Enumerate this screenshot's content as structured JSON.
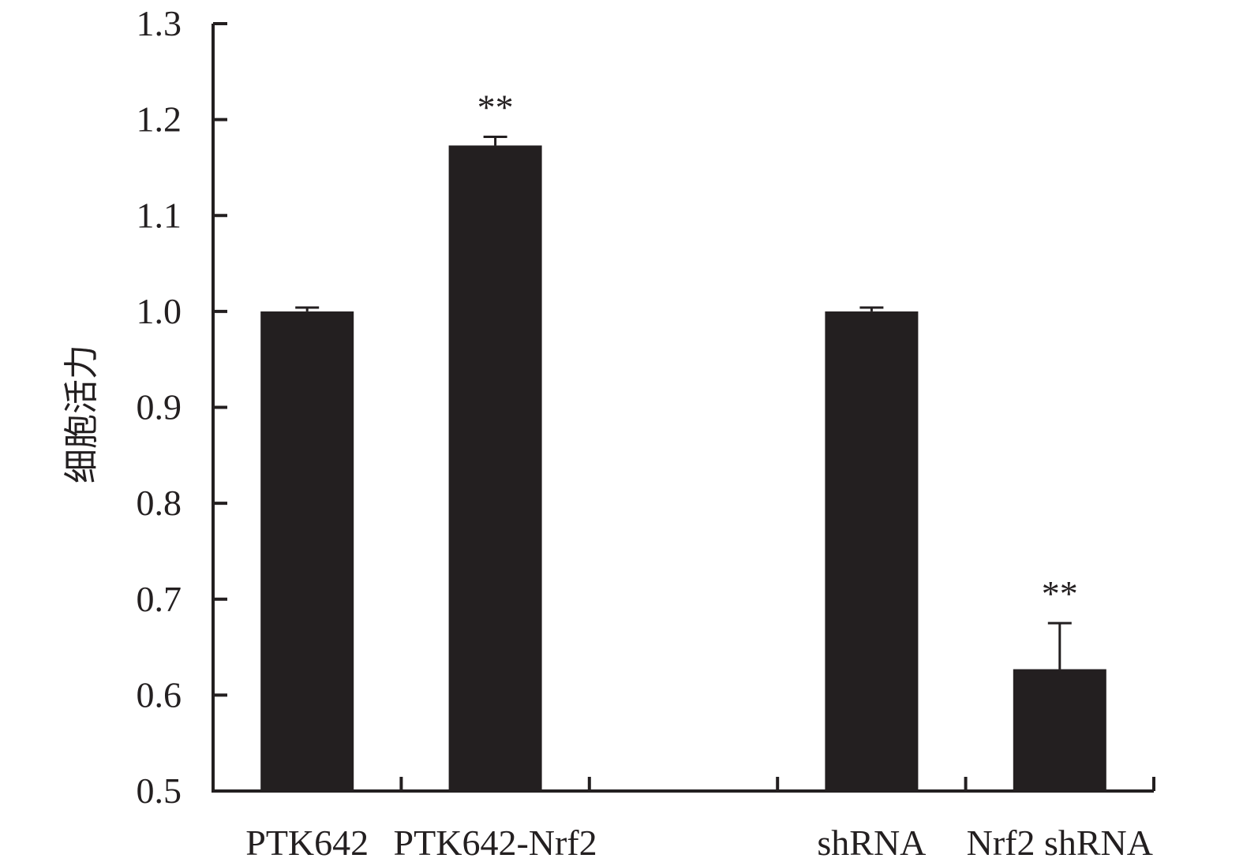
{
  "chart_data": {
    "type": "bar",
    "title": "",
    "xlabel": "",
    "ylabel": "细胞活力",
    "ylim": [
      0.5,
      1.3
    ],
    "yticks": [
      "0.5",
      "0.6",
      "0.7",
      "0.8",
      "0.9",
      "1.0",
      "1.1",
      "1.2",
      "1.3"
    ],
    "categories": [
      "PTK642",
      "PTK642-Nrf2",
      "",
      "shRNA",
      "Nrf2 shRNA"
    ],
    "values": [
      1.0,
      1.173,
      null,
      1.0,
      0.627
    ],
    "errors": [
      0.004,
      0.009,
      null,
      0.004,
      0.048
    ],
    "annotations": [
      "",
      "**",
      "",
      "",
      "**"
    ],
    "bar_color": "#231f20",
    "grid": false,
    "legend": "none"
  }
}
